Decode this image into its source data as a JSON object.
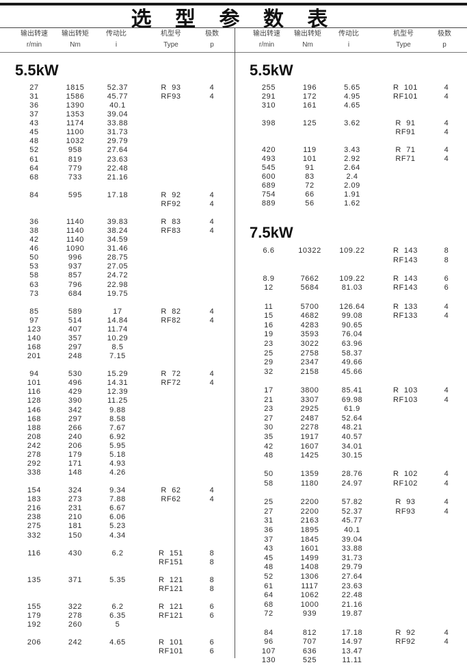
{
  "title": "选 型 参 数 表",
  "columns": [
    {
      "cn": "输出转速",
      "unit": "r/min"
    },
    {
      "cn": "输出转矩",
      "unit": "Nm"
    },
    {
      "cn": "传动比",
      "unit": "i"
    },
    {
      "cn": "机型号",
      "unit": "Type"
    },
    {
      "cn": "极数",
      "unit": "p"
    }
  ],
  "halves": [
    {
      "sections": [
        {
          "title": "5.5kW",
          "groups": [
            [
              [
                "27",
                "1815",
                "52.37",
                "R  93",
                "4"
              ],
              [
                "31",
                "1586",
                "45.77",
                "RF93",
                "4"
              ],
              [
                "36",
                "1390",
                "40.1",
                "",
                ""
              ],
              [
                "37",
                "1353",
                "39.04",
                "",
                ""
              ],
              [
                "43",
                "1174",
                "33.88",
                "",
                ""
              ],
              [
                "45",
                "1100",
                "31.73",
                "",
                ""
              ],
              [
                "48",
                "1032",
                "29.79",
                "",
                ""
              ],
              [
                "52",
                "958",
                "27.64",
                "",
                ""
              ],
              [
                "61",
                "819",
                "23.63",
                "",
                ""
              ],
              [
                "64",
                "779",
                "22.48",
                "",
                ""
              ],
              [
                "68",
                "733",
                "21.16",
                "",
                ""
              ]
            ],
            [
              [
                "84",
                "595",
                "17.18",
                "R  92",
                "4"
              ],
              [
                "",
                "",
                "",
                "RF92",
                "4"
              ]
            ],
            [
              [
                "36",
                "1140",
                "39.83",
                "R  83",
                "4"
              ],
              [
                "38",
                "1140",
                "38.24",
                "RF83",
                "4"
              ],
              [
                "42",
                "1140",
                "34.59",
                "",
                ""
              ],
              [
                "46",
                "1090",
                "31.46",
                "",
                ""
              ],
              [
                "50",
                "996",
                "28.75",
                "",
                ""
              ],
              [
                "53",
                "937",
                "27.05",
                "",
                ""
              ],
              [
                "58",
                "857",
                "24.72",
                "",
                ""
              ],
              [
                "63",
                "796",
                "22.98",
                "",
                ""
              ],
              [
                "73",
                "684",
                "19.75",
                "",
                ""
              ]
            ],
            [
              [
                "85",
                "589",
                "17",
                "R  82",
                "4"
              ],
              [
                "97",
                "514",
                "14.84",
                "RF82",
                "4"
              ],
              [
                "123",
                "407",
                "11.74",
                "",
                ""
              ],
              [
                "140",
                "357",
                "10.29",
                "",
                ""
              ],
              [
                "168",
                "297",
                "8.5",
                "",
                ""
              ],
              [
                "201",
                "248",
                "7.15",
                "",
                ""
              ]
            ],
            [
              [
                "94",
                "530",
                "15.29",
                "R  72",
                "4"
              ],
              [
                "101",
                "496",
                "14.31",
                "RF72",
                "4"
              ],
              [
                "116",
                "429",
                "12.39",
                "",
                ""
              ],
              [
                "128",
                "390",
                "11.25",
                "",
                ""
              ],
              [
                "146",
                "342",
                "9.88",
                "",
                ""
              ],
              [
                "168",
                "297",
                "8.58",
                "",
                ""
              ],
              [
                "188",
                "266",
                "7.67",
                "",
                ""
              ],
              [
                "208",
                "240",
                "6.92",
                "",
                ""
              ],
              [
                "242",
                "206",
                "5.95",
                "",
                ""
              ],
              [
                "278",
                "179",
                "5.18",
                "",
                ""
              ],
              [
                "292",
                "171",
                "4.93",
                "",
                ""
              ],
              [
                "338",
                "148",
                "4.26",
                "",
                ""
              ]
            ],
            [
              [
                "154",
                "324",
                "9.34",
                "R  62",
                "4"
              ],
              [
                "183",
                "273",
                "7.88",
                "RF62",
                "4"
              ],
              [
                "216",
                "231",
                "6.67",
                "",
                ""
              ],
              [
                "238",
                "210",
                "6.06",
                "",
                ""
              ],
              [
                "275",
                "181",
                "5.23",
                "",
                ""
              ],
              [
                "332",
                "150",
                "4.34",
                "",
                ""
              ]
            ],
            [
              [
                "116",
                "430",
                "6.2",
                "R  151",
                "8"
              ],
              [
                "",
                "",
                "",
                "RF151",
                "8"
              ]
            ],
            [
              [
                "135",
                "371",
                "5.35",
                "R  121",
                "8"
              ],
              [
                "",
                "",
                "",
                "RF121",
                "8"
              ]
            ],
            [
              [
                "155",
                "322",
                "6.2",
                "R  121",
                "6"
              ],
              [
                "179",
                "278",
                "6.35",
                "RF121",
                "6"
              ],
              [
                "192",
                "260",
                "5",
                "",
                ""
              ]
            ],
            [
              [
                "206",
                "242",
                "4.65",
                "R  101",
                "6"
              ],
              [
                "",
                "",
                "",
                "RF101",
                "6"
              ]
            ]
          ]
        }
      ]
    },
    {
      "sections": [
        {
          "title": "5.5kW",
          "groups": [
            [
              [
                "255",
                "196",
                "5.65",
                "R  101",
                "4"
              ],
              [
                "291",
                "172",
                "4.95",
                "RF101",
                "4"
              ],
              [
                "310",
                "161",
                "4.65",
                "",
                ""
              ]
            ],
            [
              [
                "398",
                "125",
                "3.62",
                "R  91",
                "4"
              ],
              [
                "",
                "",
                "",
                "RF91",
                "4"
              ]
            ],
            [
              [
                "420",
                "119",
                "3.43",
                "R  71",
                "4"
              ],
              [
                "493",
                "101",
                "2.92",
                "RF71",
                "4"
              ],
              [
                "545",
                "91",
                "2.64",
                "",
                ""
              ],
              [
                "600",
                "83",
                "2.4",
                "",
                ""
              ],
              [
                "689",
                "72",
                "2.09",
                "",
                ""
              ],
              [
                "754",
                "66",
                "1.91",
                "",
                ""
              ],
              [
                "889",
                "56",
                "1.62",
                "",
                ""
              ]
            ]
          ]
        },
        {
          "title": "7.5kW",
          "groups": [
            [
              [
                "6.6",
                "10322",
                "109.22",
                "R  143",
                "8"
              ],
              [
                "",
                "",
                "",
                "RF143",
                "8"
              ]
            ],
            [
              [
                "8.9",
                "7662",
                "109.22",
                "R  143",
                "6"
              ],
              [
                "12",
                "5684",
                "81.03",
                "RF143",
                "6"
              ]
            ],
            [
              [
                "11",
                "5700",
                "126.64",
                "R  133",
                "4"
              ],
              [
                "15",
                "4682",
                "99.08",
                "RF133",
                "4"
              ],
              [
                "16",
                "4283",
                "90.65",
                "",
                ""
              ],
              [
                "19",
                "3593",
                "76.04",
                "",
                ""
              ],
              [
                "23",
                "3022",
                "63.96",
                "",
                ""
              ],
              [
                "25",
                "2758",
                "58.37",
                "",
                ""
              ],
              [
                "29",
                "2347",
                "49.66",
                "",
                ""
              ],
              [
                "32",
                "2158",
                "45.66",
                "",
                ""
              ]
            ],
            [
              [
                "17",
                "3800",
                "85.41",
                "R  103",
                "4"
              ],
              [
                "21",
                "3307",
                "69.98",
                "RF103",
                "4"
              ],
              [
                "23",
                "2925",
                "61.9",
                "",
                ""
              ],
              [
                "27",
                "2487",
                "52.64",
                "",
                ""
              ],
              [
                "30",
                "2278",
                "48.21",
                "",
                ""
              ],
              [
                "35",
                "1917",
                "40.57",
                "",
                ""
              ],
              [
                "42",
                "1607",
                "34.01",
                "",
                ""
              ],
              [
                "48",
                "1425",
                "30.15",
                "",
                ""
              ]
            ],
            [
              [
                "50",
                "1359",
                "28.76",
                "R  102",
                "4"
              ],
              [
                "58",
                "1180",
                "24.97",
                "RF102",
                "4"
              ]
            ],
            [
              [
                "25",
                "2200",
                "57.82",
                "R  93",
                "4"
              ],
              [
                "27",
                "2200",
                "52.37",
                "RF93",
                "4"
              ],
              [
                "31",
                "2163",
                "45.77",
                "",
                ""
              ],
              [
                "36",
                "1895",
                "40.1",
                "",
                ""
              ],
              [
                "37",
                "1845",
                "39.04",
                "",
                ""
              ],
              [
                "43",
                "1601",
                "33.88",
                "",
                ""
              ],
              [
                "45",
                "1499",
                "31.73",
                "",
                ""
              ],
              [
                "48",
                "1408",
                "29.79",
                "",
                ""
              ],
              [
                "52",
                "1306",
                "27.64",
                "",
                ""
              ],
              [
                "61",
                "1117",
                "23.63",
                "",
                ""
              ],
              [
                "64",
                "1062",
                "22.48",
                "",
                ""
              ],
              [
                "68",
                "1000",
                "21.16",
                "",
                ""
              ],
              [
                "72",
                "939",
                "19.87",
                "",
                ""
              ]
            ],
            [
              [
                "84",
                "812",
                "17.18",
                "R  92",
                "4"
              ],
              [
                "96",
                "707",
                "14.97",
                "RF92",
                "4"
              ],
              [
                "107",
                "636",
                "13.47",
                "",
                ""
              ],
              [
                "130",
                "525",
                "11.11",
                "",
                ""
              ]
            ]
          ]
        }
      ]
    }
  ]
}
